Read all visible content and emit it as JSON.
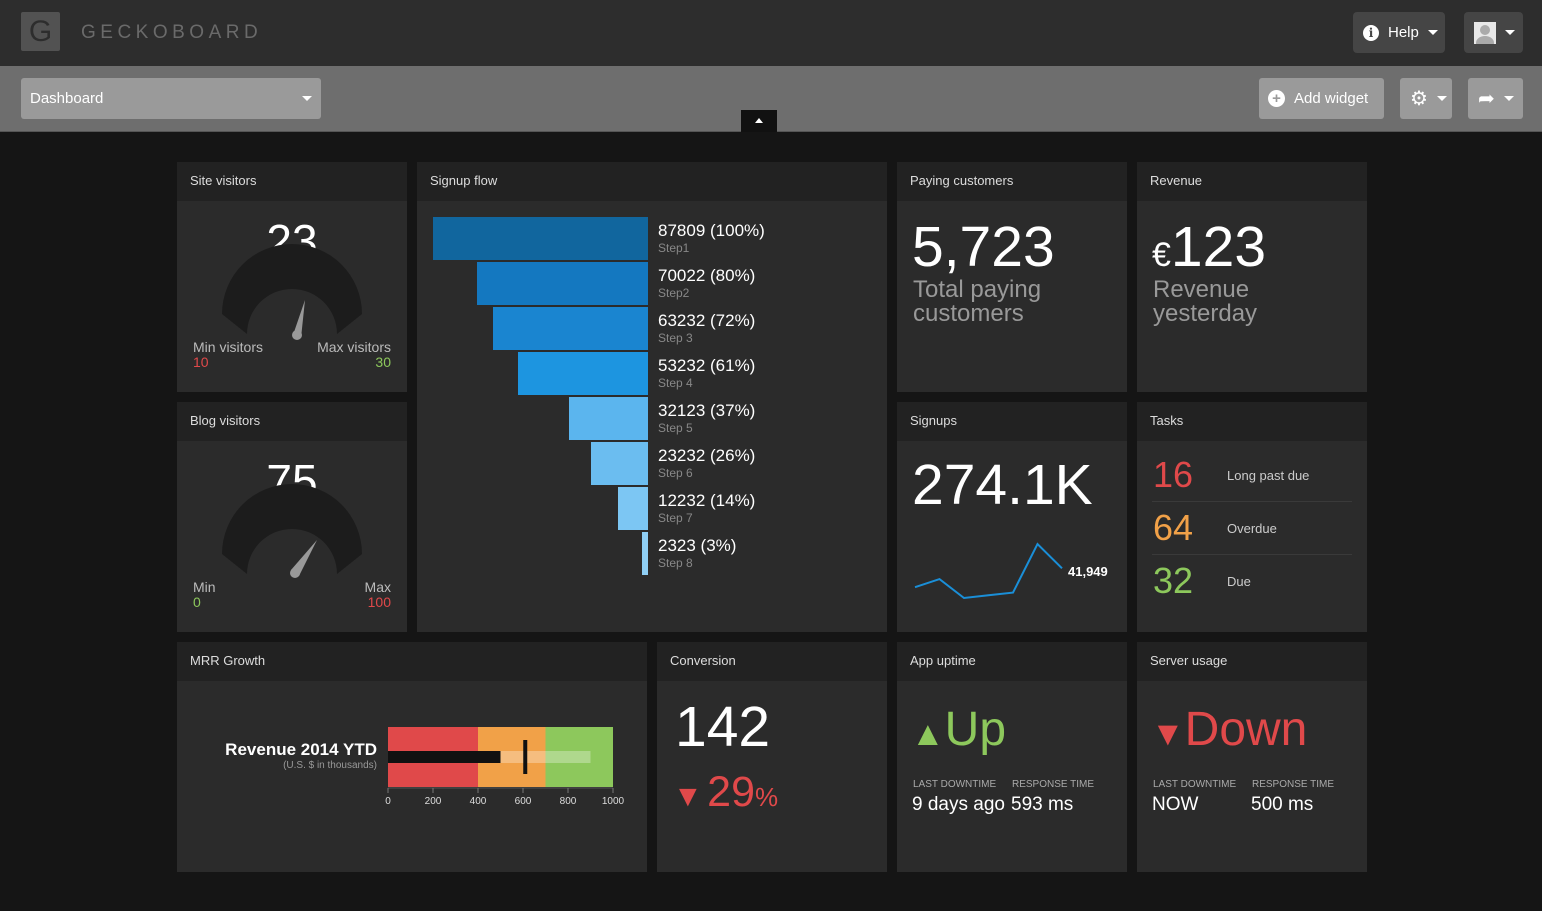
{
  "app": {
    "logo_letter": "G",
    "brand": "GECKOBOARD"
  },
  "header": {
    "help_label": "Help"
  },
  "toolbar": {
    "dashboard_label": "Dashboard",
    "add_widget_label": "Add widget"
  },
  "colors": {
    "red": "#e0494a",
    "green": "#8dc85c",
    "orange": "#f1a148",
    "blue": "#1a8fd8"
  },
  "widgets": {
    "site_visitors": {
      "title": "Site visitors",
      "value": "23",
      "min_label": "Min visitors",
      "min_value": "10",
      "max_label": "Max visitors",
      "max_value": "30"
    },
    "blog_visitors": {
      "title": "Blog visitors",
      "value": "75",
      "min_label": "Min",
      "min_value": "0",
      "max_label": "Max",
      "max_value": "100"
    },
    "signup_flow": {
      "title": "Signup flow",
      "steps": [
        {
          "label": "87809 (100%)",
          "step": "Step1",
          "value": 87809,
          "pct": 100,
          "color": "#11669e"
        },
        {
          "label": "70022 (80%)",
          "step": "Step2",
          "value": 70022,
          "pct": 80,
          "color": "#1478c0"
        },
        {
          "label": "63232 (72%)",
          "step": "Step 3",
          "value": 63232,
          "pct": 72,
          "color": "#1a85d0"
        },
        {
          "label": "53232 (61%)",
          "step": "Step 4",
          "value": 53232,
          "pct": 61,
          "color": "#1d95e0"
        },
        {
          "label": "32123 (37%)",
          "step": "Step 5",
          "value": 32123,
          "pct": 37,
          "color": "#5bb5ee"
        },
        {
          "label": "23232 (26%)",
          "step": "Step 6",
          "value": 23232,
          "pct": 26,
          "color": "#6bbdf0"
        },
        {
          "label": "12232 (14%)",
          "step": "Step 7",
          "value": 12232,
          "pct": 14,
          "color": "#7cc6f3"
        },
        {
          "label": "2323 (3%)",
          "step": "Step 8",
          "value": 2323,
          "pct": 3,
          "color": "#8fcff5"
        }
      ]
    },
    "paying_customers": {
      "title": "Paying customers",
      "value": "5,723",
      "sub1": "Total paying",
      "sub2": "customers"
    },
    "revenue": {
      "title": "Revenue",
      "currency": "€",
      "value": "123",
      "sub1": "Revenue",
      "sub2": "yesterday"
    },
    "signups": {
      "title": "Signups",
      "value": "274.1K",
      "last_value": "41,949",
      "sparkline": [
        0.2,
        0.35,
        0.0,
        0.05,
        0.1,
        1.0,
        0.55
      ]
    },
    "tasks": {
      "title": "Tasks",
      "items": [
        {
          "count": "16",
          "label": "Long past due",
          "color": "#e0494a"
        },
        {
          "count": "64",
          "label": "Overdue",
          "color": "#f1a148"
        },
        {
          "count": "32",
          "label": "Due",
          "color": "#8dc85c"
        }
      ]
    },
    "mrr_growth": {
      "title": "MRR Growth",
      "label": "Revenue 2014 YTD",
      "sublabel": "(U.S. $ in thousands)",
      "ticks": [
        "0",
        "200",
        "400",
        "600",
        "800",
        "1000"
      ]
    },
    "conversion": {
      "title": "Conversion",
      "value": "142",
      "change": "29",
      "change_unit": "%"
    },
    "app_uptime": {
      "title": "App uptime",
      "status": "Up",
      "last_downtime_label": "LAST DOWNTIME",
      "last_downtime": "9 days ago",
      "response_label": "RESPONSE TIME",
      "response": "593 ms"
    },
    "server_usage": {
      "title": "Server usage",
      "status": "Down",
      "last_downtime_label": "LAST DOWNTIME",
      "last_downtime": "NOW",
      "response_label": "RESPONSE TIME",
      "response": "500 ms"
    }
  },
  "chart_data": [
    {
      "type": "bar",
      "title": "Signup flow",
      "categories": [
        "Step1",
        "Step2",
        "Step 3",
        "Step 4",
        "Step 5",
        "Step 6",
        "Step 7",
        "Step 8"
      ],
      "values": [
        87809,
        70022,
        63232,
        53232,
        32123,
        23232,
        12232,
        2323
      ]
    },
    {
      "type": "line",
      "title": "Signups",
      "values": [
        0.2,
        0.35,
        0.0,
        0.05,
        0.1,
        1.0,
        0.55
      ],
      "last_label": "41,949"
    },
    {
      "type": "bar",
      "title": "Revenue 2014 YTD",
      "xlim": [
        0,
        1000
      ],
      "ranges": [
        400,
        700,
        1000
      ],
      "range_colors": [
        "#e0494a",
        "#f1a148",
        "#8dc85c"
      ],
      "actual": 500,
      "projected": 900,
      "target": 610
    }
  ]
}
